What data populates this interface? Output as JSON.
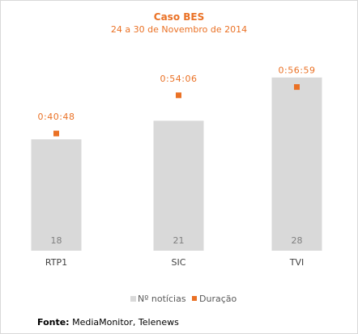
{
  "chart_data": {
    "type": "bar",
    "title": "Caso BES",
    "subtitle": "24 a 30 de Novembro de 2014",
    "categories": [
      "RTP1",
      "SIC",
      "TVI"
    ],
    "series": [
      {
        "name": "Nº notícias",
        "type": "bar",
        "values": [
          18,
          21,
          28
        ],
        "color": "#d9d9d9"
      },
      {
        "name": "Duração",
        "type": "marker",
        "values": [
          "0:40:48",
          "0:54:06",
          "0:56:59"
        ],
        "values_seconds": [
          2448,
          3246,
          3419
        ],
        "color": "#ea7125"
      }
    ],
    "legend_position": "bottom",
    "grid": false
  },
  "source": {
    "label": "Fonte:",
    "text": "MediaMonitor, Telenews"
  }
}
